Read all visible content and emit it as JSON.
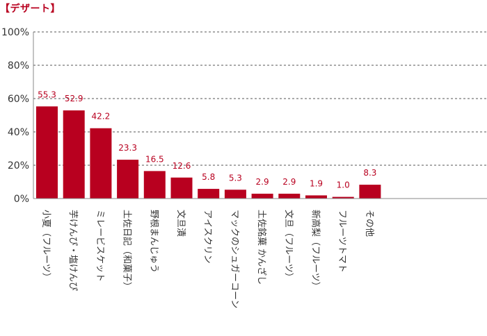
{
  "title": "【デザート】",
  "colors": {
    "bar": "#b8001f",
    "title": "#b8001f",
    "value_label": "#b8001f",
    "grid": "#555555",
    "axis": "#888888",
    "text": "#333333"
  },
  "chart_data": {
    "type": "bar",
    "title": "【デザート】",
    "xlabel": "",
    "ylabel": "",
    "ylim": [
      0,
      100
    ],
    "yticks": [
      0,
      20,
      40,
      60,
      80,
      100
    ],
    "ytick_labels": [
      "0%",
      "20%",
      "40%",
      "60%",
      "80%",
      "100%"
    ],
    "grid": true,
    "categories": [
      "小夏（フルーツ）",
      "芋けんぴ・塩けんぴ",
      "ミレービスケット",
      "土佐日記（和菓子）",
      "野根まんじゅう",
      "文旦漬",
      "アイスクリン",
      "マックのシュガーコーン",
      "土佐銘菓 かんざし",
      "文旦（フルーツ）",
      "新高梨（フルーツ）",
      "フルーツトマト",
      "その他"
    ],
    "values": [
      55.3,
      52.9,
      42.2,
      23.3,
      16.5,
      12.6,
      5.8,
      5.3,
      2.9,
      2.9,
      1.9,
      1.0,
      8.3
    ],
    "value_labels": [
      "55.3",
      "52.9",
      "42.2",
      "23.3",
      "16.5",
      "12.6",
      "5.8",
      "5.3",
      "2.9",
      "2.9",
      "1.9",
      "1.0",
      "8.3"
    ]
  }
}
